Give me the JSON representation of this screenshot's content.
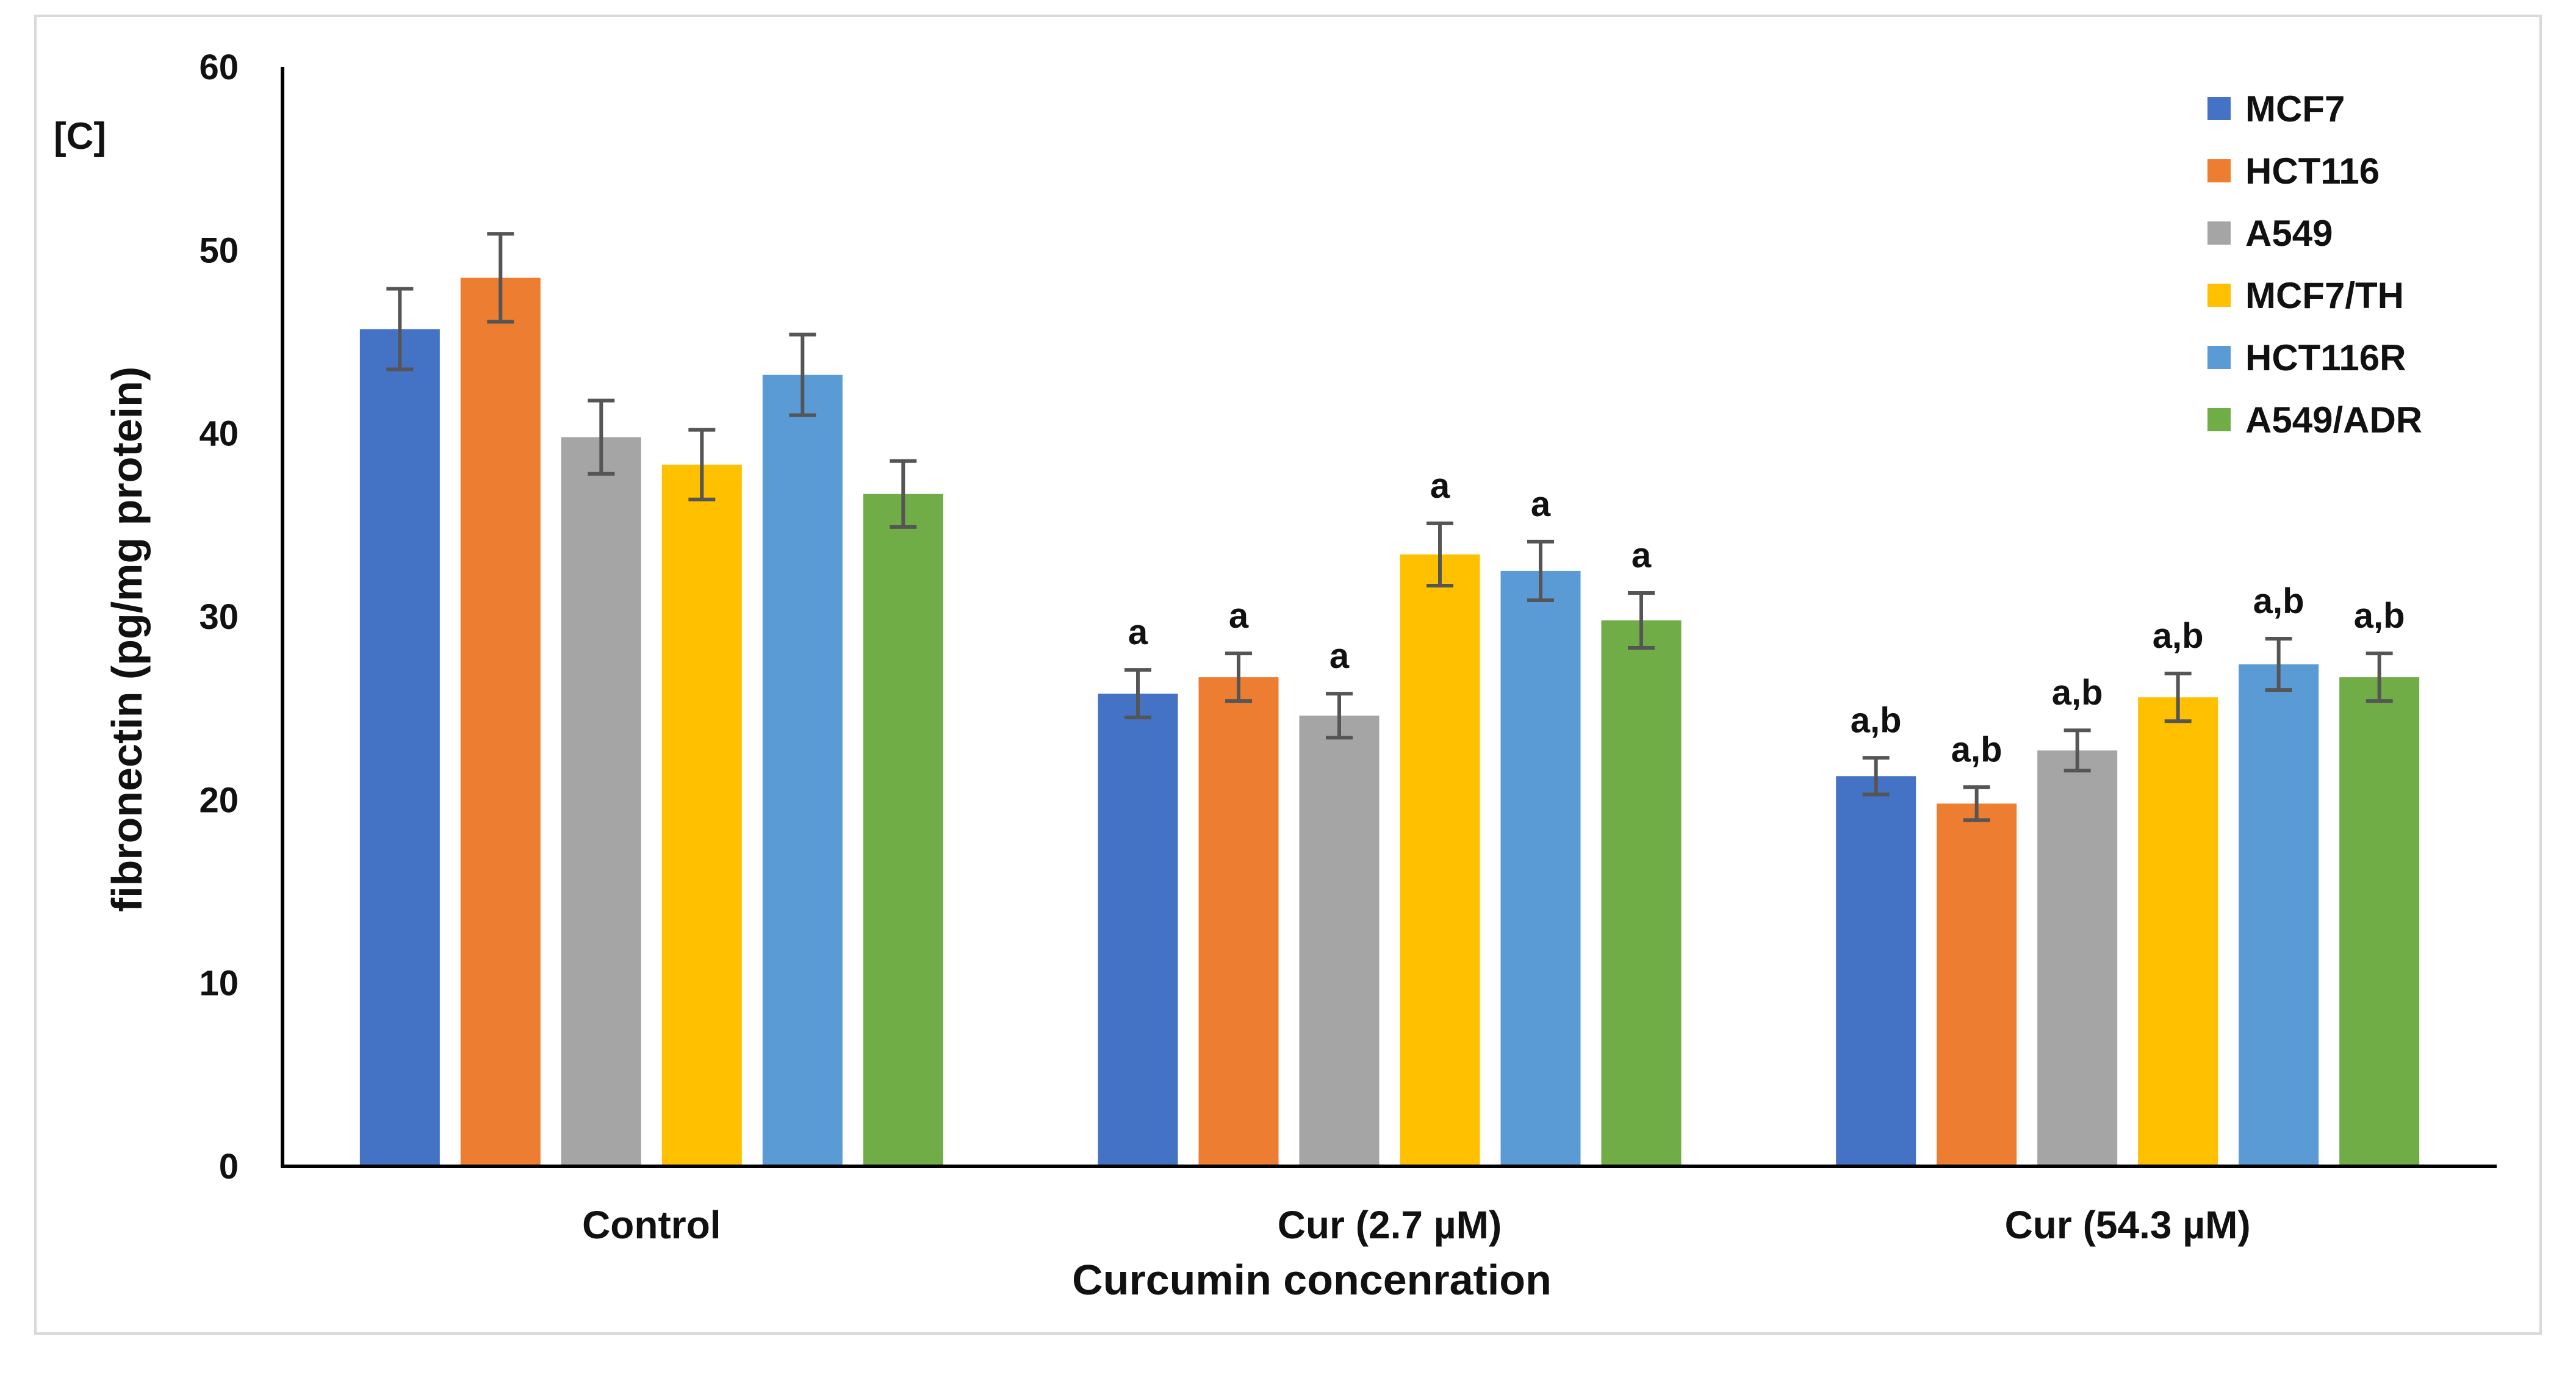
{
  "chart_data": {
    "type": "bar",
    "panel_label": "[C]",
    "xlabel": "Curcumin concenration",
    "ylabel": "fibronectin (pg/mg protein)",
    "ylim": [
      0,
      60
    ],
    "yticks": [
      0,
      10,
      20,
      30,
      40,
      50,
      60
    ],
    "categories": [
      "Control",
      "Cur (2.7  µM)",
      "Cur (54.3 µM)"
    ],
    "legend_position": "top-right",
    "series": [
      {
        "name": "MCF7",
        "color": "#4472C4",
        "values": [
          45.7,
          25.8,
          21.3
        ],
        "errors": [
          2.2,
          1.3,
          1.0
        ],
        "labels": [
          "",
          "a",
          "a,b"
        ]
      },
      {
        "name": "HCT116",
        "color": "#ED7D31",
        "values": [
          48.5,
          26.7,
          19.8
        ],
        "errors": [
          2.4,
          1.3,
          0.9
        ],
        "labels": [
          "",
          "a",
          "a,b"
        ]
      },
      {
        "name": "A549",
        "color": "#A5A5A5",
        "values": [
          39.8,
          24.6,
          22.7
        ],
        "errors": [
          2.0,
          1.2,
          1.1
        ],
        "labels": [
          "",
          "a",
          "a,b"
        ]
      },
      {
        "name": "MCF7/TH",
        "color": "#FFC000",
        "values": [
          38.3,
          33.4,
          25.6
        ],
        "errors": [
          1.9,
          1.7,
          1.3
        ],
        "labels": [
          "",
          "a",
          "a,b"
        ]
      },
      {
        "name": "HCT116R",
        "color": "#5B9BD5",
        "values": [
          43.2,
          32.5,
          27.4
        ],
        "errors": [
          2.2,
          1.6,
          1.4
        ],
        "labels": [
          "",
          "a",
          "a,b"
        ]
      },
      {
        "name": "A549/ADR",
        "color": "#70AD47",
        "values": [
          36.7,
          29.8,
          26.7
        ],
        "errors": [
          1.8,
          1.5,
          1.3
        ],
        "labels": [
          "",
          "a",
          "a,b"
        ]
      }
    ]
  }
}
